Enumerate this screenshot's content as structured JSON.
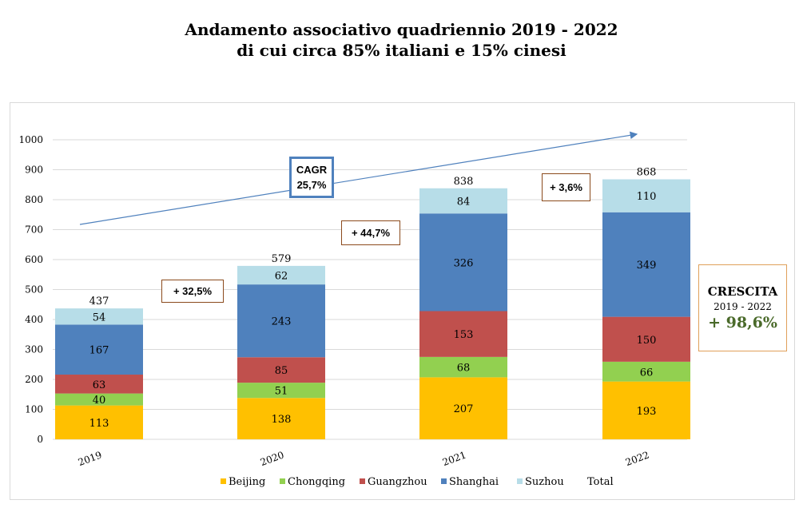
{
  "title": {
    "line1": "Andamento associativo quadriennio 2019 - 2022",
    "line2": "di cui circa 85% italiani e 15% cinesi"
  },
  "annotations": {
    "cagr": {
      "label": "CAGR",
      "value": "25,7%"
    },
    "growth_2020": "+ 32,5%",
    "growth_2021": "+ 44,7%",
    "growth_2022": "+ 3,6%",
    "crescita": {
      "label": "CRESCITA",
      "period": "2019 - 2022",
      "value": "+ 98,6%"
    }
  },
  "chart_data": {
    "type": "bar",
    "stacked": true,
    "title": "Andamento associativo quadriennio 2019 - 2022",
    "subtitle": "di cui circa 85% italiani e 15% cinesi",
    "xlabel": "",
    "ylabel": "",
    "categories": [
      "2019",
      "2020",
      "2021",
      "2022"
    ],
    "ylim": [
      0,
      1000
    ],
    "yticks": [
      0,
      100,
      200,
      300,
      400,
      500,
      600,
      700,
      800,
      900,
      1000
    ],
    "grid": true,
    "legend_position": "bottom",
    "series": [
      {
        "name": "Beijing",
        "color": "#ffc000",
        "values": [
          113,
          138,
          207,
          193
        ]
      },
      {
        "name": "Chongqing",
        "color": "#92d050",
        "values": [
          40,
          51,
          68,
          66
        ]
      },
      {
        "name": "Guangzhou",
        "color": "#c0504d",
        "values": [
          63,
          85,
          153,
          150
        ]
      },
      {
        "name": "Shanghai",
        "color": "#4f81bd",
        "values": [
          167,
          243,
          326,
          349
        ]
      },
      {
        "name": "Suzhou",
        "color": "#b7dde8",
        "values": [
          54,
          62,
          84,
          110
        ]
      }
    ],
    "totals": {
      "name": "Total",
      "values": [
        437,
        579,
        838,
        868
      ]
    },
    "trend_arrow": {
      "from_category": "2019",
      "to_category": "2022",
      "label": "CAGR 25,7%"
    }
  }
}
